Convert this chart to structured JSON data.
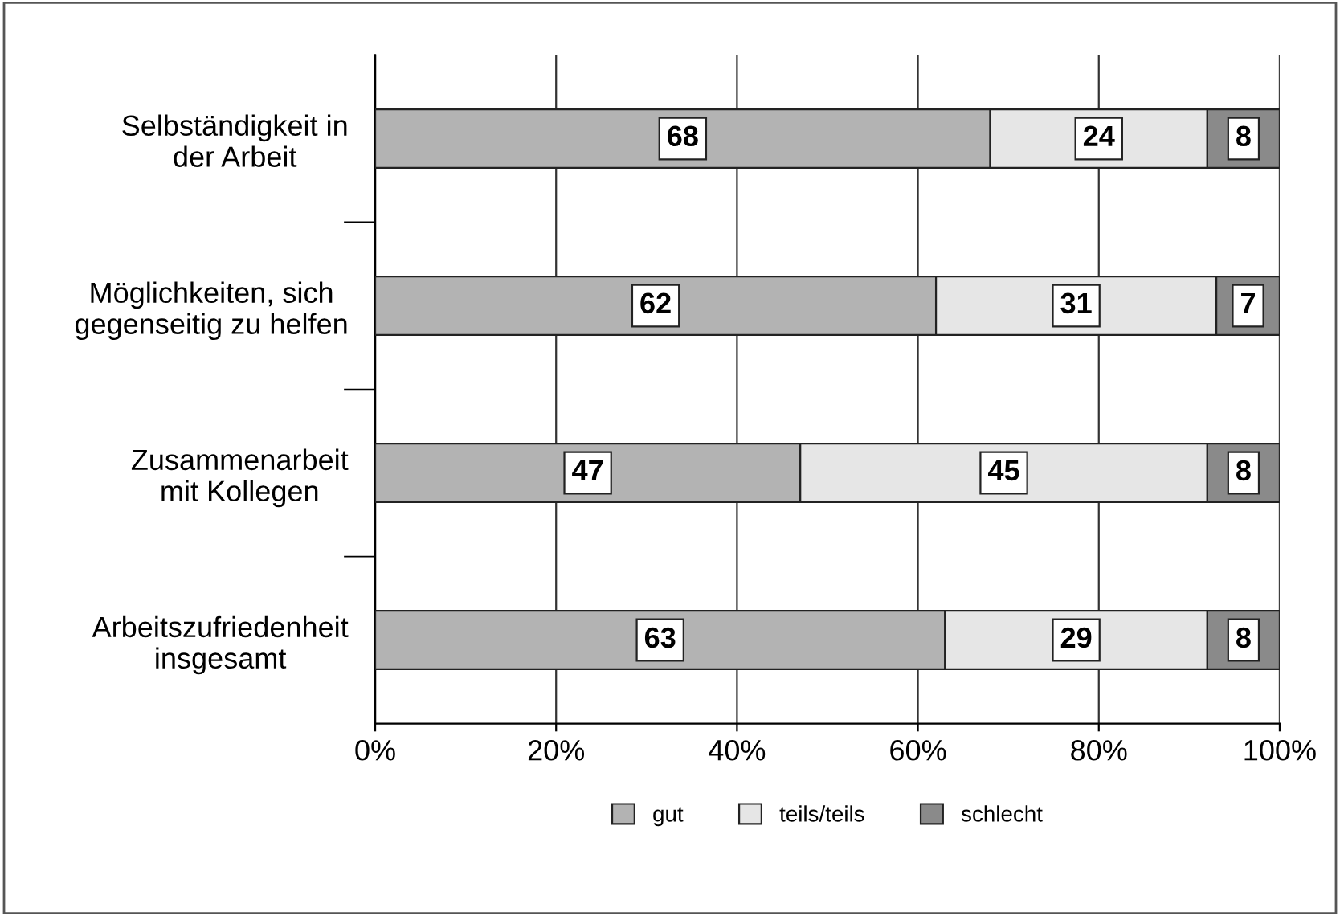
{
  "chart_data": {
    "type": "bar",
    "orientation": "horizontal",
    "stacked": true,
    "categories": [
      "Selbständigkeit in\nder Arbeit",
      "Möglichkeiten, sich\ngegenseitig zu helfen",
      "Zusammenarbeit\nmit Kollegen",
      "Arbeitszufriedenheit\ninsgesamt"
    ],
    "series": [
      {
        "name": "gut",
        "color": "#b3b3b3",
        "values": [
          68,
          62,
          47,
          63
        ]
      },
      {
        "name": "teils/teils",
        "color": "#e6e6e6",
        "values": [
          24,
          31,
          45,
          29
        ]
      },
      {
        "name": "schlecht",
        "color": "#8a8a8a",
        "values": [
          8,
          7,
          8,
          8
        ]
      }
    ],
    "xlim": [
      0,
      100
    ],
    "xticks": [
      {
        "value": 0,
        "label": "0%"
      },
      {
        "value": 20,
        "label": "20%"
      },
      {
        "value": 40,
        "label": "40%"
      },
      {
        "value": 60,
        "label": "60%"
      },
      {
        "value": 80,
        "label": "80%"
      },
      {
        "value": 100,
        "label": "100%"
      }
    ],
    "grid": "x",
    "legend": "bottom",
    "data_labels": true
  }
}
